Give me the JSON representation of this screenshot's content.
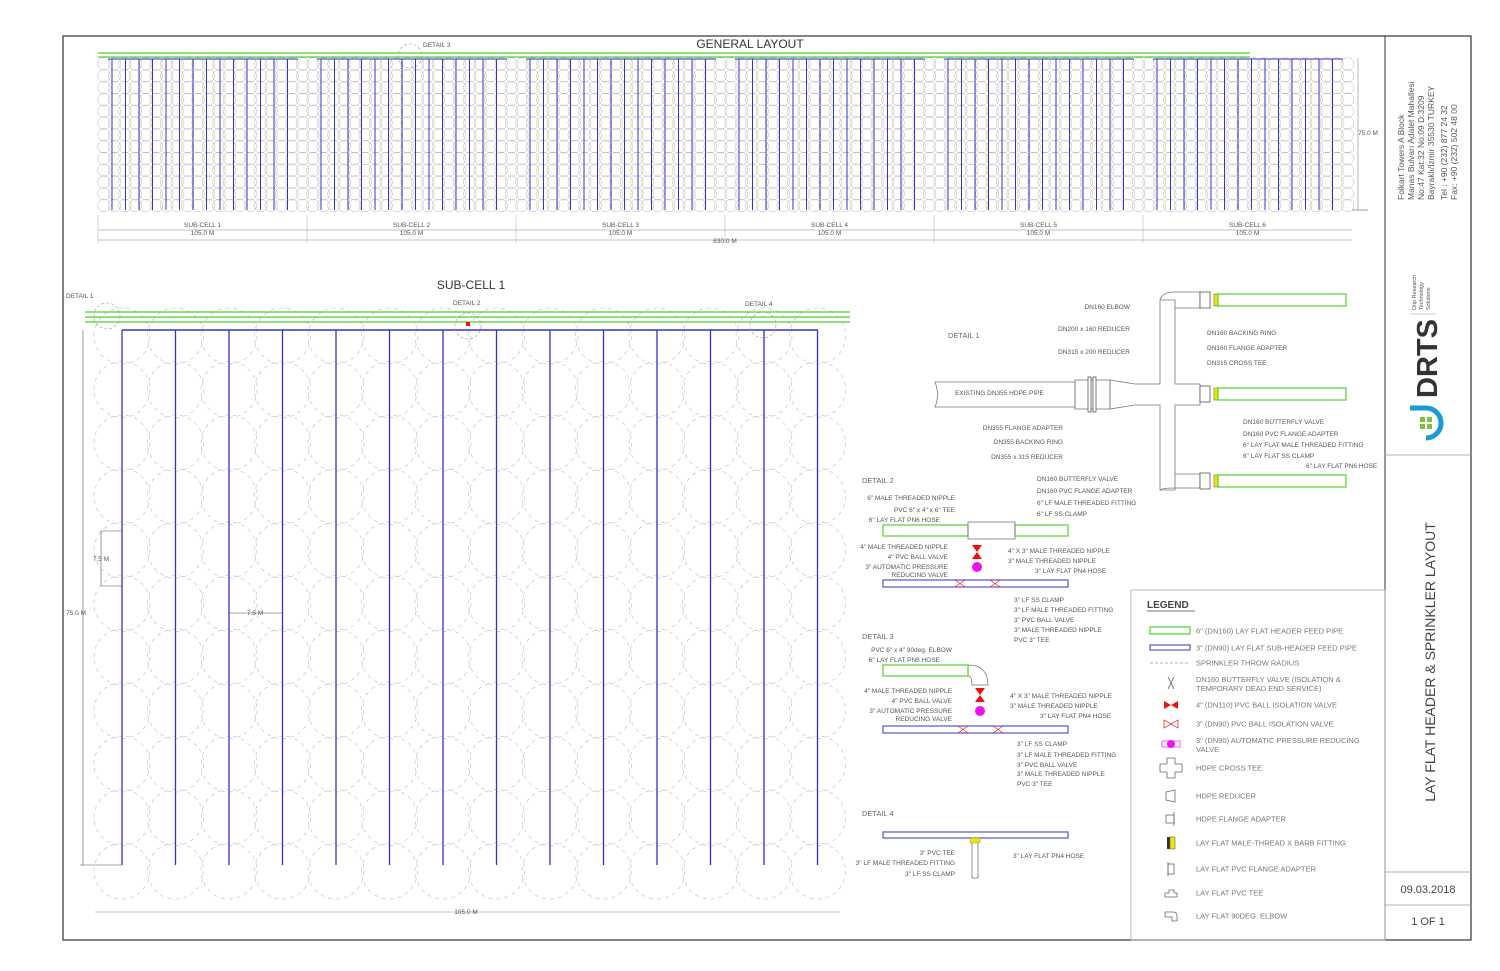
{
  "general_layout": {
    "title": "GENERAL LAYOUT",
    "detail_ref": "DETAIL 3",
    "subcells": [
      {
        "name": "SUB-CELL 1",
        "length": "105.0 M"
      },
      {
        "name": "SUB-CELL 2",
        "length": "105.0 M"
      },
      {
        "name": "SUB-CELL 3",
        "length": "105.0 M"
      },
      {
        "name": "SUB-CELL 4",
        "length": "105.0 M"
      },
      {
        "name": "SUB-CELL 5",
        "length": "105.0 M"
      },
      {
        "name": "SUB-CELL 6",
        "length": "105.0 M"
      }
    ],
    "total_length": "630.0 M",
    "height": "75.0 M"
  },
  "sub_cell": {
    "title": "SUB-CELL 1",
    "detail_refs": [
      "DETAIL 1",
      "DETAIL 2",
      "DETAIL 4"
    ],
    "height": "75.0 M",
    "spacing_vertical": "7.5 M",
    "spacing_horizontal": "7.5 M",
    "width": "105.0 M"
  },
  "detail1": {
    "title": "DETAIL 1",
    "labels_left": [
      "DN160 ELBOW",
      "DN200 x 160 REDUCER",
      "DN315 x 200 REDUCER",
      "DN355 FLANGE ADAPTER",
      "DN355 BACKING RING",
      "DN355 x 315 REDUCER"
    ],
    "pipe_label": "EXISTING DN355 HDPE PIPE",
    "labels_right": [
      "DN160 BACKING RING",
      "DN160 FLANGE ADAPTER",
      "DN315 CROSS TEE",
      "DN160 BUTTERFLY VALVE",
      "DN160 PVC FLANGE ADAPTER",
      "6\" LAY FLAT MALE THREADED FITTING",
      "6\" LAY FLAT SS CLAMP",
      "6\" LAY FLAT PN6 HOSE"
    ]
  },
  "detail2": {
    "title": "DETAIL 2",
    "labels_left": [
      "6\" MALE THREADED NIPPLE",
      "PVC 6\" x 4\" x 6\" TEE",
      "6\" LAY FLAT PN6 HOSE",
      "4\" MALE THREADED NIPPLE",
      "4\" PVC BALL VALVE",
      "3\"  AUTOMATIC PRESSURE",
      "REDUCING VALVE"
    ],
    "labels_right_top": [
      "DN160 BUTTERFLY VALVE",
      "DN160 PVC FLANGE ADAPTER",
      "6\" LF MALE THREADED FITTING",
      "6\" LF SS CLAMP"
    ],
    "labels_right": [
      "4\" X 3\"  MALE THREADED NIPPLE",
      "3\"  MALE THREADED NIPPLE",
      "3\" LAY FLAT PN4 HOSE",
      "3\" LF SS CLAMP",
      "3\" LF MALE THREADED FITTING",
      "3\" PVC BALL VALVE",
      "3\"  MALE THREADED NIPPLE",
      "PVC 3\" TEE"
    ]
  },
  "detail3": {
    "title": "DETAIL 3",
    "labels_left": [
      "PVC 6\" x 4\" 90deg. ELBOW",
      "6\" LAY FLAT PN6 HOSE",
      "4\" MALE THREADED NIPPLE",
      "4\" PVC BALL VALVE",
      "3\"  AUTOMATIC PRESSURE",
      "REDUCING VALVE"
    ],
    "labels_right": [
      "4\" X 3\"  MALE THREADED NIPPLE",
      "3\"  MALE THREADED NIPPLE",
      "3\" LAY FLAT PN4 HOSE",
      "3\" LF SS CLAMP",
      "3\" LF MALE THREADED FITTING",
      "3\" PVC BALL VALVE",
      "3\"  MALE THREADED NIPPLE",
      "PVC 3\" TEE"
    ]
  },
  "detail4": {
    "title": "DETAIL 4",
    "labels_left": [
      "3\" PVC TEE",
      "3\" LF MALE THREADED FITTING",
      "3\" LF SS CLAMP"
    ],
    "label_right": "3\" LAY FLAT PN4 HOSE"
  },
  "legend": {
    "title": "LEGEND",
    "items": [
      {
        "icon": "green-header-pipe-icon",
        "label": "6\" (DN160) LAY FLAT HEADER FEED PIPE"
      },
      {
        "icon": "blue-subheader-pipe-icon",
        "label": "3\" (DN90) LAY FLAT SUB-HEADER FEED PIPE"
      },
      {
        "icon": "dashed-line-icon",
        "label": "SPRINKLER THROW RADIUS"
      },
      {
        "icon": "butterfly-valve-icon",
        "label": "DN160 BUTTERFLY VALVE (ISOLATION &",
        "label2": "TEMPORARY DEAD END SERVICE)"
      },
      {
        "icon": "ball-valve-4in-icon",
        "label": "4\" (DN110) PVC BALL ISOLATION VALVE"
      },
      {
        "icon": "ball-valve-3in-icon",
        "label": "3\" (DN90) PVC BALL ISOLATION VALVE"
      },
      {
        "icon": "pressure-reducing-valve-icon",
        "label": "3\" (DN90) AUTOMATIC PRESSURE REDUCING",
        "label2": "VALVE"
      },
      {
        "icon": "cross-tee-icon",
        "label": "HDPE CROSS TEE"
      },
      {
        "icon": "reducer-icon",
        "label": "HDPE REDUCER"
      },
      {
        "icon": "flange-adapter-icon",
        "label": "HDPE FLANGE ADAPTER"
      },
      {
        "icon": "barb-fitting-icon",
        "label": "LAY FLAT MALE-THREAD X BARB FITTING"
      },
      {
        "icon": "pvc-flange-adapter-icon",
        "label": "LAY FLAT PVC FLANGE ADAPTER"
      },
      {
        "icon": "pvc-tee-icon",
        "label": "LAY FLAT PVC TEE"
      },
      {
        "icon": "elbow-icon",
        "label": "LAY FLAT 90DEG. ELBOW"
      }
    ]
  },
  "title_block": {
    "address": [
      "Folkart Towers A Block",
      "Manas Bulvarı Adalet Mahallesi",
      "No:47 Kat:32 No:09 D:3209",
      "Bayraklı/İzmir 35530 TURKEY",
      "Tel : +90 (232) 877 24 32",
      "Fax: +90 (232) 502 48 00"
    ],
    "logo_text": "DRTS",
    "logo_tagline": [
      "Drip Research",
      "Technology",
      "Solutions"
    ],
    "drawing_title": "LAY FLAT HEADER & SPRINKLER LAYOUT",
    "date": "09.03.2018",
    "sheet": "1 OF 1"
  },
  "colors": {
    "header_pipe": "#4fd02a",
    "subheader_pipe": "#3333cc",
    "valve_red": "#ee1111",
    "prv_magenta": "#ee11ee",
    "logo_blue": "#1a9ad6",
    "logo_green": "#7cc242"
  }
}
